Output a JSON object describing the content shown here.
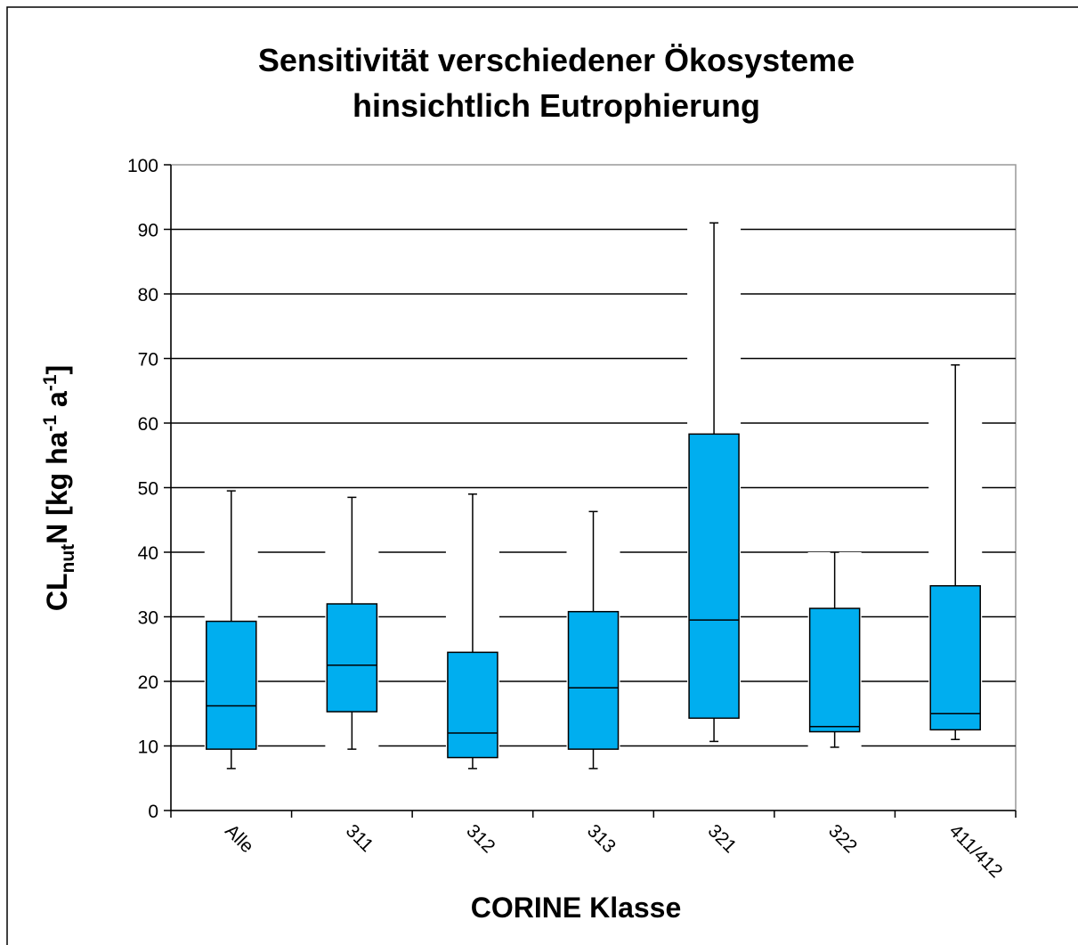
{
  "chart_data": {
    "type": "box",
    "title": [
      "Sensitivität verschiedener Ökosysteme",
      "hinsichtlich Eutrophierung"
    ],
    "y_label": [
      "CL",
      "nut",
      "N [kg ha",
      "-1",
      " a",
      "-1",
      "]"
    ],
    "x_label": "CORINE Klasse",
    "categories": [
      "Alle",
      "311",
      "312",
      "313",
      "321",
      "322",
      "411/412"
    ],
    "min": [
      6.5,
      9.5,
      6.5,
      6.5,
      10.7,
      9.8,
      11
    ],
    "q1": [
      9.5,
      15.3,
      8.2,
      9.5,
      14.3,
      12.2,
      12.5
    ],
    "median": [
      16.2,
      22.5,
      12,
      19,
      29.5,
      13,
      15
    ],
    "q3": [
      29.3,
      32,
      24.5,
      30.8,
      58.3,
      31.3,
      34.8
    ],
    "max": [
      49.5,
      48.5,
      49,
      46.3,
      91,
      40,
      69
    ],
    "color": "#00aeef",
    "ylim": [
      0,
      100
    ],
    "yticks": [
      0,
      10,
      20,
      30,
      40,
      50,
      60,
      70,
      80,
      90,
      100
    ],
    "grid": true
  }
}
